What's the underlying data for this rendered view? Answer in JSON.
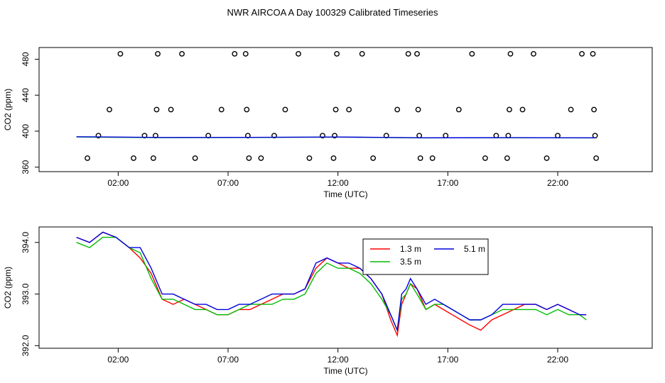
{
  "page": {
    "title": "NWR AIRCOA A  Day 100329  Calibrated Timeseries"
  },
  "chart_data": [
    {
      "type": "scatter",
      "title": "",
      "xlabel": "Time (UTC)",
      "ylabel": "CO2 (ppm)",
      "xlim": [
        -1.6,
        26.3
      ],
      "ylim": [
        355,
        493
      ],
      "x_ticks": [
        2,
        7,
        12,
        17,
        22
      ],
      "x_tick_labels": [
        "02:00",
        "07:00",
        "12:00",
        "17:00",
        "22:00"
      ],
      "y_ticks": [
        360,
        400,
        440,
        480
      ],
      "y_tick_labels": [
        "360",
        "400",
        "440",
        "480"
      ],
      "grid": false,
      "legend": "none",
      "series": [
        {
          "mode": "points",
          "marker": "open-circle",
          "color": "#000000",
          "x": [
            0.6,
            1.1,
            1.6,
            2.1,
            2.7,
            3.2,
            3.6,
            3.7,
            3.75,
            3.8,
            4.4,
            4.9,
            5.5,
            6.1,
            6.7,
            7.3,
            7.8,
            7.85,
            7.9,
            7.95,
            8.5,
            9.1,
            9.6,
            10.2,
            10.7,
            11.3,
            11.8,
            11.85,
            11.9,
            11.95,
            12.5,
            13.1,
            13.6,
            14.2,
            14.7,
            15.2,
            15.6,
            15.65,
            15.7,
            15.75,
            16.3,
            16.9,
            17.5,
            18.1,
            18.7,
            19.2,
            19.7,
            19.75,
            19.8,
            19.85,
            20.4,
            20.9,
            21.5,
            22.0,
            22.6,
            23.1,
            23.6,
            23.65,
            23.7,
            23.75
          ],
          "y": [
            370,
            395,
            424,
            486,
            370,
            395,
            370,
            395,
            424,
            486,
            424,
            486,
            370,
            395,
            424,
            486,
            486,
            424,
            395,
            370,
            370,
            395,
            424,
            486,
            370,
            395,
            370,
            395,
            424,
            486,
            424,
            486,
            370,
            395,
            424,
            486,
            486,
            424,
            395,
            370,
            370,
            395,
            424,
            486,
            370,
            395,
            370,
            395,
            424,
            486,
            424,
            486,
            370,
            395,
            424,
            486,
            486,
            424,
            395,
            370
          ]
        },
        {
          "mode": "line",
          "color": "#00bb00",
          "x": [
            0.1,
            4,
            8,
            12,
            16,
            20,
            23.7
          ],
          "y": [
            393.6,
            392.8,
            393.0,
            393.4,
            392.5,
            392.7,
            392.5
          ]
        },
        {
          "mode": "line",
          "color": "#0000dd",
          "x": [
            0.1,
            4,
            8,
            12,
            16,
            20,
            23.7
          ],
          "y": [
            393.8,
            393.0,
            393.1,
            393.5,
            392.6,
            392.8,
            392.6
          ]
        }
      ]
    },
    {
      "type": "line",
      "title": "",
      "xlabel": "Time (UTC)",
      "ylabel": "CO2 (ppm)",
      "xlim": [
        -1.6,
        26.3
      ],
      "ylim": [
        391.95,
        394.3
      ],
      "x_ticks": [
        2,
        7,
        12,
        17,
        22
      ],
      "x_tick_labels": [
        "02:00",
        "07:00",
        "12:00",
        "17:00",
        "22:00"
      ],
      "y_ticks": [
        392.0,
        393.0,
        394.0
      ],
      "y_tick_labels": [
        "392.0",
        "393.0",
        "394.0"
      ],
      "grid": false,
      "legend": "top-center",
      "x": [
        0.1,
        0.7,
        1.3,
        1.9,
        2.5,
        3.0,
        3.5,
        4.0,
        4.5,
        5.0,
        5.5,
        6.0,
        6.5,
        7.0,
        7.5,
        8.0,
        8.5,
        9.0,
        9.5,
        10.0,
        10.5,
        11.0,
        11.5,
        12.0,
        12.5,
        13.0,
        13.5,
        14.0,
        14.4,
        14.7,
        14.9,
        15.1,
        15.3,
        15.6,
        16.0,
        16.4,
        16.8,
        17.2,
        17.6,
        18.0,
        18.5,
        19.0,
        19.5,
        20.0,
        20.5,
        21.0,
        21.5,
        22.0,
        22.5,
        23.0,
        23.3
      ],
      "series": [
        {
          "name": "1.3 m",
          "color": "#ff0000",
          "values": [
            394.1,
            394.0,
            394.2,
            394.1,
            393.9,
            393.7,
            393.4,
            392.9,
            392.8,
            392.9,
            392.8,
            392.7,
            392.6,
            392.6,
            392.7,
            392.7,
            392.8,
            392.9,
            393.0,
            393.0,
            393.1,
            393.5,
            393.7,
            393.6,
            393.5,
            393.5,
            393.3,
            393.0,
            392.5,
            392.2,
            392.8,
            393.0,
            393.2,
            393.1,
            392.7,
            392.8,
            392.7,
            392.6,
            392.5,
            392.4,
            392.3,
            392.5,
            392.6,
            392.7,
            392.8,
            392.8,
            392.7,
            392.8,
            392.7,
            392.6,
            392.6
          ]
        },
        {
          "name": "3.5 m",
          "color": "#00bb00",
          "values": [
            394.0,
            393.9,
            394.1,
            394.1,
            393.9,
            393.8,
            393.3,
            392.9,
            392.9,
            392.8,
            392.7,
            392.7,
            392.6,
            392.6,
            392.7,
            392.8,
            392.8,
            392.8,
            392.9,
            392.9,
            393.0,
            393.4,
            393.6,
            393.5,
            393.5,
            393.4,
            393.2,
            392.9,
            392.6,
            392.3,
            392.9,
            393.0,
            393.2,
            393.0,
            392.7,
            392.8,
            392.8,
            392.7,
            392.6,
            392.5,
            392.5,
            392.6,
            392.7,
            392.7,
            392.7,
            392.7,
            392.6,
            392.7,
            392.6,
            392.6,
            392.5
          ]
        },
        {
          "name": "5.1 m",
          "color": "#0000dd",
          "values": [
            394.1,
            394.0,
            394.2,
            394.1,
            393.9,
            393.9,
            393.5,
            393.0,
            393.0,
            392.9,
            392.8,
            392.8,
            392.7,
            392.7,
            392.8,
            392.8,
            392.9,
            393.0,
            393.0,
            393.0,
            393.1,
            393.6,
            393.7,
            393.6,
            393.6,
            393.5,
            393.3,
            393.0,
            392.6,
            392.3,
            393.0,
            393.1,
            393.3,
            393.1,
            392.8,
            392.9,
            392.8,
            392.7,
            392.6,
            392.5,
            392.5,
            392.6,
            392.8,
            392.8,
            392.8,
            392.8,
            392.7,
            392.8,
            392.7,
            392.6,
            392.6
          ]
        }
      ]
    }
  ]
}
